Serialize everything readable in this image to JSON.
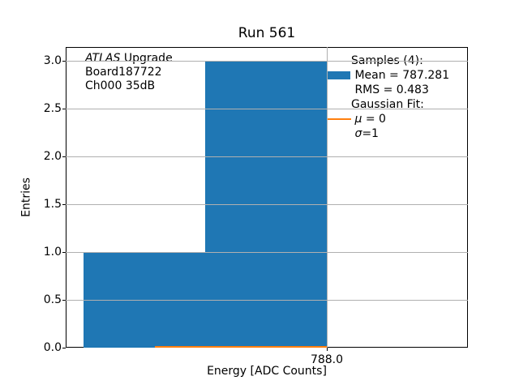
{
  "chart_data": {
    "type": "bar",
    "title": "Run 561",
    "xlabel": "Energy [ADC Counts]",
    "ylabel": "Entries",
    "xlim": [
      786.39,
      788.87
    ],
    "ylim": [
      0,
      3.14
    ],
    "x_ticks": [
      788.0
    ],
    "x_tick_labels": [
      "788.0"
    ],
    "y_ticks": [
      0.0,
      0.5,
      1.0,
      1.5,
      2.0,
      2.5,
      3.0
    ],
    "y_tick_labels": [
      "0.0",
      "0.5",
      "1.0",
      "1.5",
      "2.0",
      "2.5",
      "3.0"
    ],
    "grid": true,
    "legend_position": "upper right",
    "colors": {
      "bar": "#1f77b4",
      "fit": "#ff7f0e",
      "grid": "#b0b0b0",
      "frame": "#000000"
    },
    "bins": [
      {
        "x0": 786.5,
        "x1": 787.25,
        "count": 1
      },
      {
        "x0": 787.25,
        "x1": 788.0,
        "count": 3
      }
    ],
    "fit_line": {
      "x0": 786.94,
      "x1": 788.0,
      "y": 0.012
    },
    "n_samples": 4,
    "mean": 787.281,
    "rms": 0.483,
    "annotation_lines": [
      [
        {
          "t": "ATLAS",
          "i": true
        },
        {
          "t": " Upgrade",
          "i": false
        }
      ],
      [
        {
          "t": "Board187722",
          "i": false
        }
      ],
      [
        {
          "t": "Ch000 35dB",
          "i": false
        }
      ]
    ],
    "legend_rows": [
      {
        "handle": "none",
        "parts": [
          {
            "t": "Samples (4):",
            "i": false
          }
        ]
      },
      {
        "handle": "patch",
        "parts": [
          {
            "t": " Mean = 787.281",
            "i": false
          }
        ]
      },
      {
        "handle": "none",
        "parts": [
          {
            "t": " RMS = 0.483",
            "i": false
          }
        ]
      },
      {
        "handle": "none",
        "parts": [
          {
            "t": "Gaussian Fit:",
            "i": false
          }
        ]
      },
      {
        "handle": "line",
        "parts": [
          {
            "t": " ",
            "i": false
          },
          {
            "t": "μ",
            "i": true
          },
          {
            "t": " = 0",
            "i": false
          }
        ]
      },
      {
        "handle": "none",
        "parts": [
          {
            "t": " ",
            "i": false
          },
          {
            "t": "σ",
            "i": true
          },
          {
            "t": "=1",
            "i": false
          }
        ]
      }
    ]
  }
}
